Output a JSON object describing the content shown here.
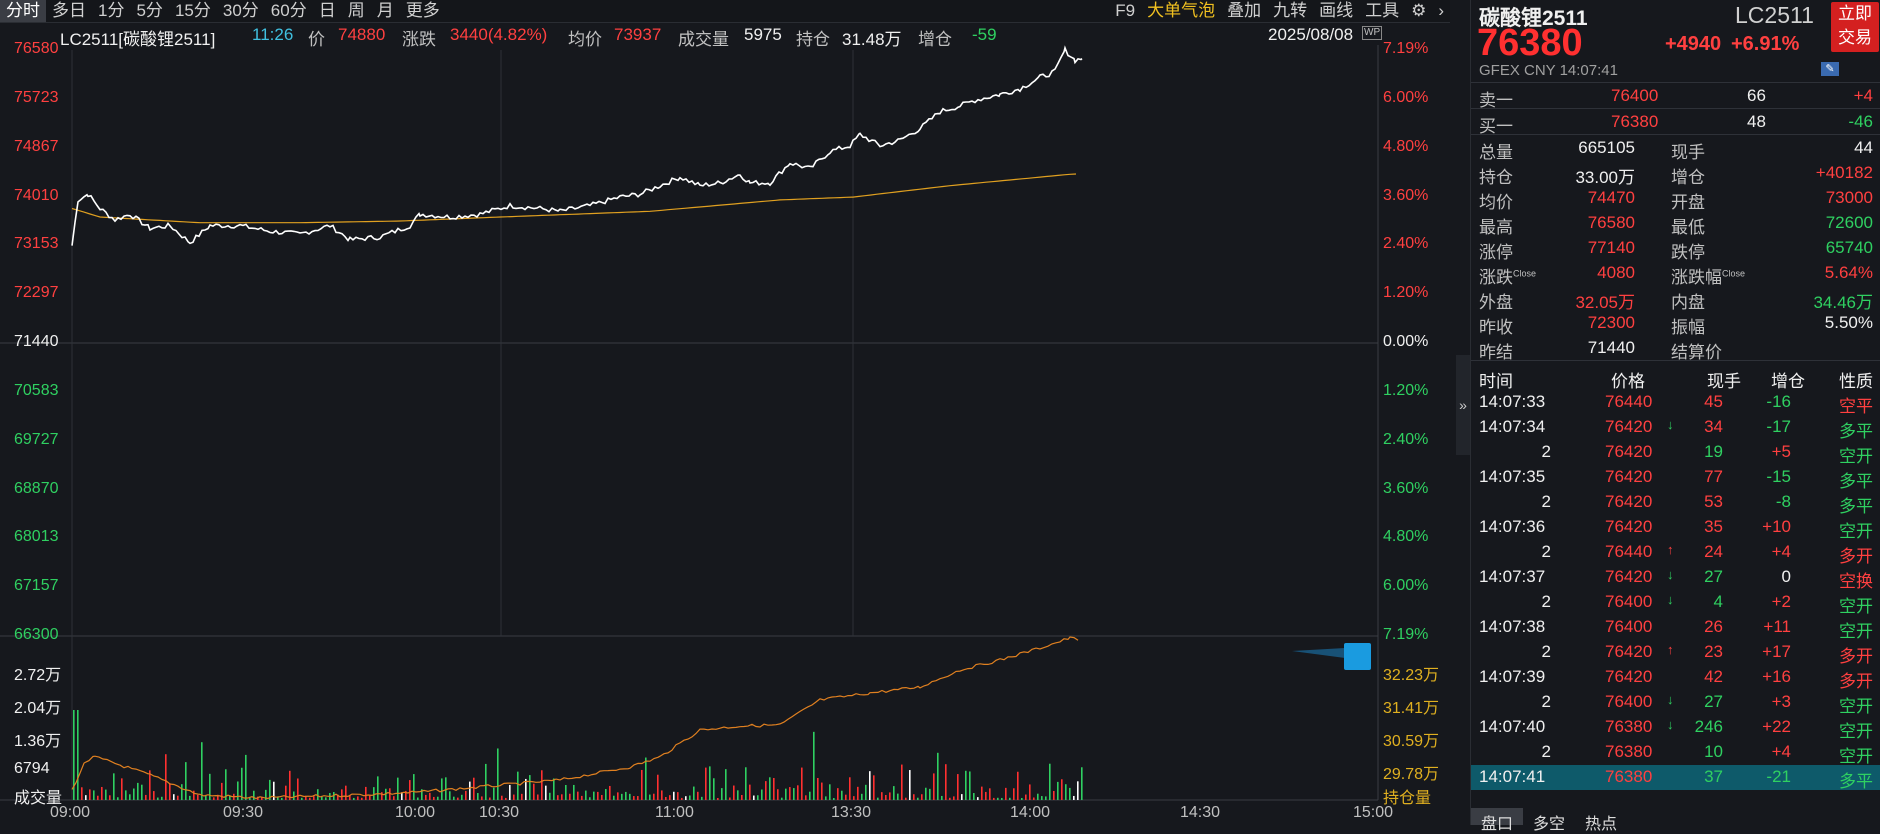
{
  "toolbar": {
    "tabs": [
      "分时",
      "多日",
      "1分",
      "5分",
      "15分",
      "30分",
      "60分",
      "日",
      "周",
      "月",
      "更多"
    ],
    "tools": [
      "F9",
      "大单气泡",
      "叠加",
      "九转",
      "画线",
      "工具"
    ],
    "settings_icon": "gear-icon",
    "next_icon": "chevron-right-icon"
  },
  "infobar": {
    "symbol": "LC2511[碳酸锂2511]",
    "time": "11:26",
    "price_label": "价",
    "price": "74880",
    "change_label": "涨跌",
    "change": "3440(4.82%)",
    "avg_label": "均价",
    "avg": "73937",
    "volume_label": "成交量",
    "volume": "5975",
    "oi_label": "持仓",
    "oi": "31.48万",
    "oi_chg_label": "增仓",
    "oi_chg": "-59",
    "date": "2025/08/08",
    "wp_badge": "WP"
  },
  "price_axis": {
    "left": [
      "76580",
      "75723",
      "74867",
      "74010",
      "73153",
      "72297",
      "71440",
      "70583",
      "69727",
      "68870",
      "68013",
      "67157",
      "66300"
    ],
    "right": [
      "7.19%",
      "6.00%",
      "4.80%",
      "3.60%",
      "2.40%",
      "1.20%",
      "0.00%",
      "1.20%",
      "2.40%",
      "3.60%",
      "4.80%",
      "6.00%",
      "7.19%"
    ]
  },
  "volume_axis": {
    "left": [
      "2.72万",
      "2.04万",
      "1.36万",
      "6794",
      "成交量"
    ],
    "right": [
      "32.23万",
      "31.41万",
      "30.59万",
      "29.78万",
      "持仓量"
    ]
  },
  "time_axis": [
    "09:00",
    "09:30",
    "10:00",
    "10:30",
    "11:00",
    "13:30",
    "14:00",
    "14:30",
    "15:00"
  ],
  "colors": {
    "up": "#ff4040",
    "down": "#2fd061",
    "price_line": "#ffffff",
    "avg_line": "#e0a020",
    "oi_line": "#e08020",
    "highlight": "#0e5a6a"
  },
  "chart_data": {
    "type": "line",
    "x_range": [
      "09:00",
      "15:00"
    ],
    "ylim": [
      66300,
      76580
    ],
    "prev_settle": 71440,
    "series": [
      {
        "values_description_only": false,
        "x": [
          "09:00",
          "09:05",
          "09:15",
          "09:30",
          "09:45",
          "10:00",
          "10:15",
          "10:30",
          "10:45",
          "11:00",
          "11:15",
          "11:30",
          "13:45",
          "14:00",
          "14:07"
        ],
        "values": [
          73300,
          73900,
          73500,
          73350,
          73200,
          73400,
          73650,
          73700,
          73800,
          74100,
          74300,
          74450,
          75700,
          76200,
          76380
        ]
      },
      {
        "x": [
          "09:00",
          "09:30",
          "10:00",
          "10:30",
          "11:00",
          "13:30",
          "14:00",
          "14:07"
        ],
        "values": [
          73400,
          73400,
          73420,
          73500,
          73600,
          73800,
          74200,
          74470
        ]
      }
    ]
  },
  "panel": {
    "title": "碳酸锂2511",
    "code": "LC2511",
    "last": "76380",
    "change": "+4940",
    "change_pct": "+6.91%",
    "trade_button": [
      "立即",
      "交易"
    ],
    "exchange": "GFEX  CNY  14:07:41",
    "ask": {
      "label": "卖一",
      "price": "76400",
      "qty": "66",
      "chg": "+4"
    },
    "bid": {
      "label": "买一",
      "price": "76380",
      "qty": "48",
      "chg": "-46"
    },
    "stats": [
      {
        "l1": "总量",
        "v1": "665105",
        "l2": "现手",
        "v2": "44"
      },
      {
        "l1": "持仓",
        "v1": "33.00万",
        "l2": "增仓",
        "v2": "+40182"
      },
      {
        "l1": "均价",
        "v1": "74470",
        "l2": "开盘",
        "v2": "73000"
      },
      {
        "l1": "最高",
        "v1": "76580",
        "l2": "最低",
        "v2": "72600"
      },
      {
        "l1": "涨停",
        "v1": "77140",
        "l2": "跌停",
        "v2": "65740"
      },
      {
        "l1": "涨跌",
        "sup1": "Close",
        "v1": "4080",
        "l2": "涨跌幅",
        "sup2": "Close",
        "v2": "5.64%"
      },
      {
        "l1": "外盘",
        "v1": "32.05万",
        "l2": "内盘",
        "v2": "34.46万"
      },
      {
        "l1": "昨收",
        "v1": "72300",
        "l2": "振幅",
        "v2": "5.50%"
      },
      {
        "l1": "昨结",
        "v1": "71440",
        "l2": "结算价",
        "v2": ""
      }
    ],
    "trades_header": [
      "时间",
      "价格",
      "现手",
      "增仓",
      "性质"
    ],
    "trades": [
      {
        "t": "14:07:33",
        "p": "76440",
        "arrow": "",
        "q": "45",
        "oi": "-16",
        "n": "空平"
      },
      {
        "t": "14:07:34",
        "p": "76420",
        "arrow": "↓",
        "q": "34",
        "oi": "-17",
        "n": "多平"
      },
      {
        "t": "2",
        "p": "76420",
        "arrow": "",
        "q": "19",
        "oi": "+5",
        "n": "空开"
      },
      {
        "t": "14:07:35",
        "p": "76420",
        "arrow": "",
        "q": "77",
        "oi": "-15",
        "n": "多平"
      },
      {
        "t": "2",
        "p": "76420",
        "arrow": "",
        "q": "53",
        "oi": "-8",
        "n": "多平"
      },
      {
        "t": "14:07:36",
        "p": "76420",
        "arrow": "",
        "q": "35",
        "oi": "+10",
        "n": "空开"
      },
      {
        "t": "2",
        "p": "76440",
        "arrow": "↑",
        "q": "24",
        "oi": "+4",
        "n": "多开"
      },
      {
        "t": "14:07:37",
        "p": "76420",
        "arrow": "↓",
        "q": "27",
        "oi": "0",
        "n": "空换"
      },
      {
        "t": "2",
        "p": "76400",
        "arrow": "↓",
        "q": "4",
        "oi": "+2",
        "n": "空开"
      },
      {
        "t": "14:07:38",
        "p": "76400",
        "arrow": "",
        "q": "26",
        "oi": "+11",
        "n": "空开"
      },
      {
        "t": "2",
        "p": "76420",
        "arrow": "↑",
        "q": "23",
        "oi": "+17",
        "n": "多开"
      },
      {
        "t": "14:07:39",
        "p": "76420",
        "arrow": "",
        "q": "42",
        "oi": "+16",
        "n": "多开"
      },
      {
        "t": "2",
        "p": "76400",
        "arrow": "↓",
        "q": "27",
        "oi": "+3",
        "n": "空开"
      },
      {
        "t": "14:07:40",
        "p": "76380",
        "arrow": "↓",
        "q": "246",
        "oi": "+22",
        "n": "空开"
      },
      {
        "t": "2",
        "p": "76380",
        "arrow": "",
        "q": "10",
        "oi": "+4",
        "n": "空开"
      },
      {
        "t": "14:07:41",
        "p": "76380",
        "arrow": "",
        "q": "37",
        "oi": "-21",
        "n": "多平"
      }
    ],
    "bottom_tabs": [
      "盘口",
      "多空",
      "热点"
    ],
    "collapse_icon": "double-chevron-right-icon"
  }
}
